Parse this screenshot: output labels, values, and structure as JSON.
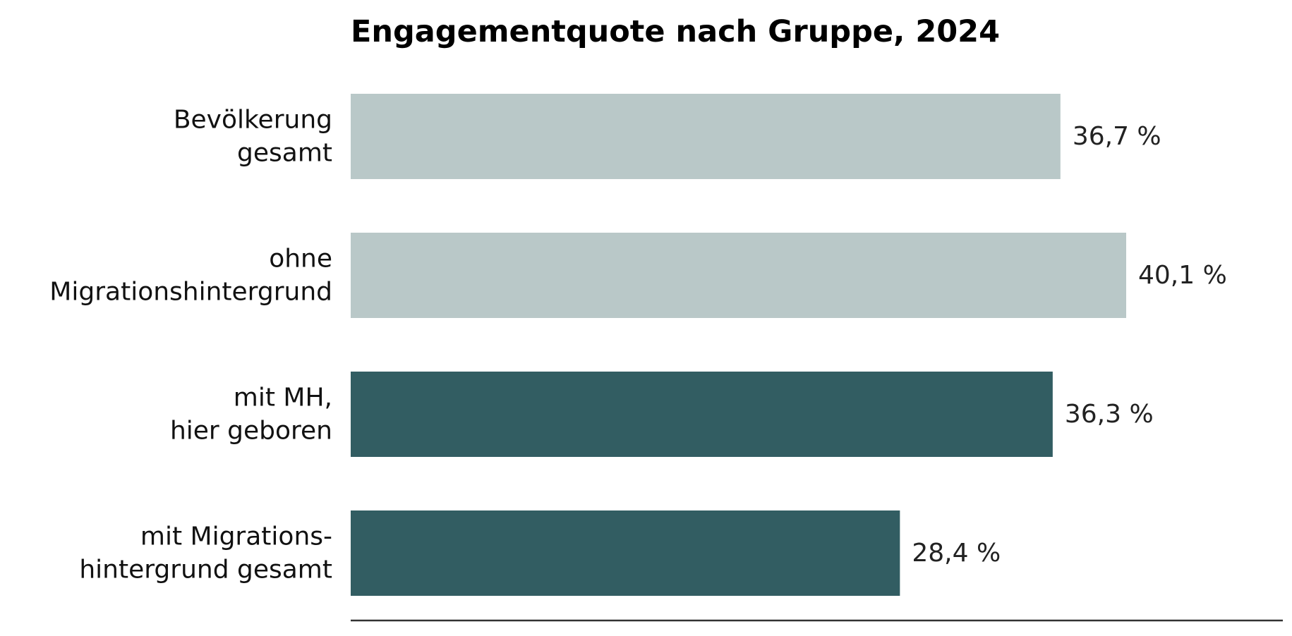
{
  "chart_data": {
    "type": "bar",
    "orientation": "horizontal",
    "title": "Engagementquote nach Gruppe, 2024",
    "categories": [
      [
        "Bevölkerung",
        "gesamt"
      ],
      [
        "ohne",
        "Migrationshintergrund"
      ],
      [
        "mit MH,",
        "hier geboren"
      ],
      [
        "mit Migrations-",
        "hintergrund gesamt"
      ]
    ],
    "values": [
      36.7,
      40.1,
      36.3,
      28.4
    ],
    "value_labels": [
      "36,7 %",
      "40,1 %",
      "36,3 %",
      "28,4 %"
    ],
    "colors": [
      "#b9c8c8",
      "#b9c8c8",
      "#325d62",
      "#325d62"
    ],
    "xlabel": "",
    "ylabel": "",
    "xlim": [
      0,
      48.2
    ],
    "grid": false,
    "legend": "none"
  }
}
